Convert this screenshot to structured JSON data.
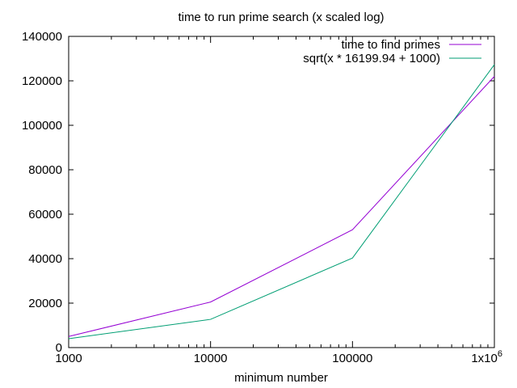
{
  "chart_data": {
    "type": "line",
    "title": "time to run prime search (x scaled log)",
    "xlabel": "minimum number",
    "ylabel": "",
    "x_scale": "log",
    "xlim": [
      1000,
      1000000
    ],
    "ylim": [
      0,
      140000
    ],
    "x_ticks": [
      {
        "value": 1000,
        "label": "1000"
      },
      {
        "value": 10000,
        "label": "10000"
      },
      {
        "value": 100000,
        "label": "100000"
      },
      {
        "value": 1000000,
        "label": "1x10",
        "superscript": "6"
      }
    ],
    "y_ticks": [
      {
        "value": 0,
        "label": "0"
      },
      {
        "value": 20000,
        "label": "20000"
      },
      {
        "value": 40000,
        "label": "40000"
      },
      {
        "value": 60000,
        "label": "60000"
      },
      {
        "value": 80000,
        "label": "80000"
      },
      {
        "value": 100000,
        "label": "100000"
      },
      {
        "value": 120000,
        "label": "120000"
      },
      {
        "value": 140000,
        "label": "140000"
      }
    ],
    "grid": false,
    "legend_position": "top-right",
    "series": [
      {
        "name": "time to find primes",
        "color": "#9400d3",
        "x": [
          1000,
          10000,
          100000,
          1000000
        ],
        "y": [
          5000,
          20500,
          53000,
          122000
        ]
      },
      {
        "name": "sqrt(x * 16199.94 + 1000)",
        "color": "#009e73",
        "x": [
          1000,
          10000,
          100000,
          1000000
        ],
        "y": [
          4000,
          12700,
          40300,
          127300
        ]
      }
    ]
  }
}
